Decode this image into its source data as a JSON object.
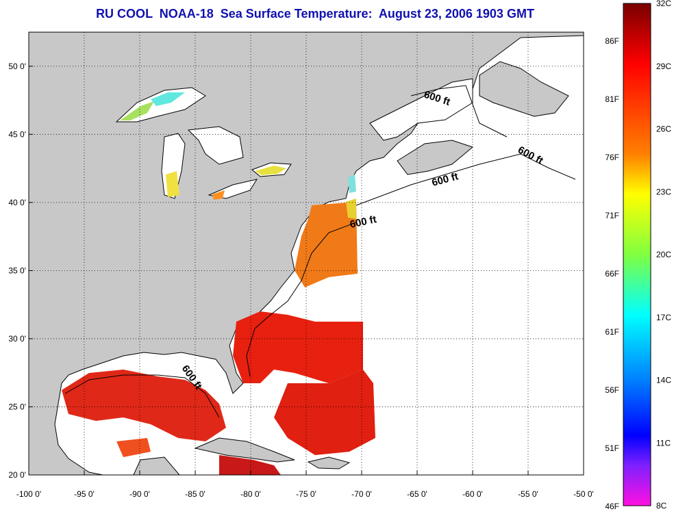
{
  "title": "RU COOL  NOAA-18  Sea Surface Temperature:  August 23, 2006 1903 GMT",
  "map": {
    "lon_ticks": [
      "-100 0'",
      "-95 0'",
      "-90 0'",
      "-85 0'",
      "-80 0'",
      "-75 0'",
      "-70 0'",
      "-65 0'",
      "-60 0'",
      "-55 0'",
      "-50 0'"
    ],
    "lat_ticks": [
      "50 0'",
      "45 0'",
      "40 0'",
      "35 0'",
      "30 0'",
      "25 0'",
      "20 0'"
    ],
    "lon_range": [
      -100,
      -50
    ],
    "lat_range": [
      20,
      52.5
    ],
    "grid": "dotted",
    "land_color": "#c8c8c8",
    "no_data_color": "#ffffff",
    "contour_labels": [
      "600 ft",
      "600 ft",
      "600 ft",
      "600 ft",
      "600 ft"
    ]
  },
  "colorbar": {
    "celsius_labels": [
      "32C",
      "29C",
      "26C",
      "23C",
      "20C",
      "17C",
      "14C",
      "11C",
      "8C"
    ],
    "fahrenheit_labels": [
      "86F",
      "81F",
      "76F",
      "71F",
      "66F",
      "61F",
      "56F",
      "51F",
      "46F"
    ],
    "stops": [
      "#7a0000",
      "#ff0000",
      "#ff8000",
      "#ffff00",
      "#80ff40",
      "#00ffff",
      "#0080ff",
      "#0000ff",
      "#8020ff",
      "#ff00ff"
    ]
  }
}
